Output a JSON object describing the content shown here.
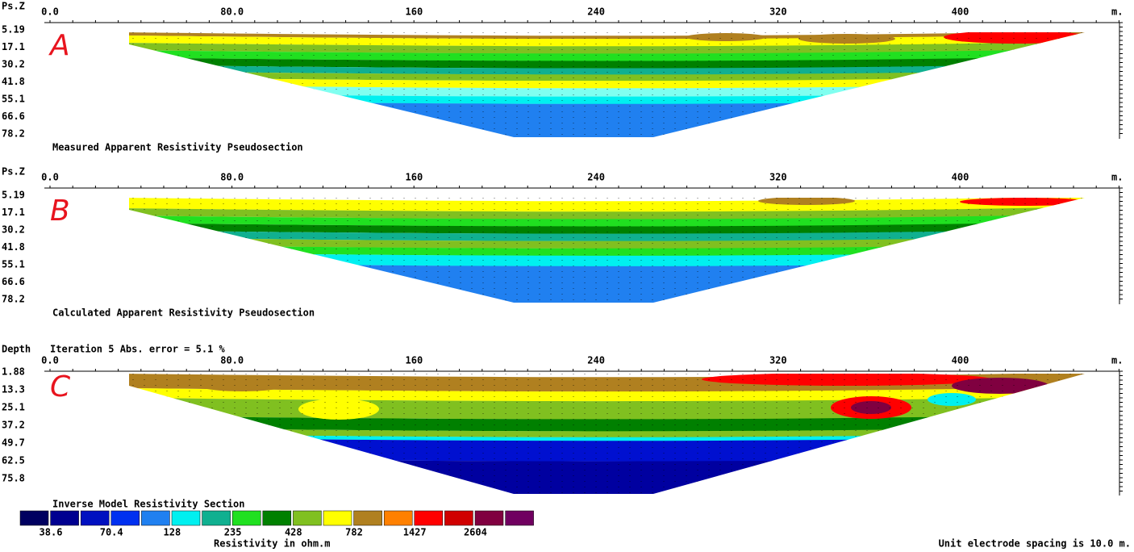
{
  "panels": [
    {
      "letter": "A",
      "depth_label": "Ps.Z",
      "x_ticks": [
        "0.0",
        "80.0",
        "160",
        "240",
        "320",
        "400"
      ],
      "x_unit": "m.",
      "depth_ticks": [
        "5.19",
        "17.1",
        "30.2",
        "41.8",
        "55.1",
        "66.6",
        "78.2"
      ],
      "caption": "Measured Apparent Resistivity Pseudosection"
    },
    {
      "letter": "B",
      "depth_label": "Ps.Z",
      "x_ticks": [
        "0.0",
        "80.0",
        "160",
        "240",
        "320",
        "400"
      ],
      "x_unit": "m.",
      "depth_ticks": [
        "5.19",
        "17.1",
        "30.2",
        "41.8",
        "55.1",
        "66.6",
        "78.2"
      ],
      "caption": "Calculated Apparent Resistivity Pseudosection"
    },
    {
      "letter": "C",
      "depth_label": "Depth",
      "header": "Iteration 5 Abs. error = 5.1 %",
      "x_ticks": [
        "0.0",
        "80.0",
        "160",
        "240",
        "320",
        "400"
      ],
      "x_unit": "m.",
      "depth_ticks": [
        "1.88",
        "13.3",
        "25.1",
        "37.2",
        "49.7",
        "62.5",
        "75.8"
      ],
      "caption": "Inverse Model Resistivity Section"
    }
  ],
  "legend": {
    "labels": [
      "38.6",
      "70.4",
      "128",
      "235",
      "428",
      "782",
      "1427",
      "2604"
    ],
    "title": "Resistivity in ohm.m"
  },
  "footer": "Unit electrode spacing is 10.0 m."
}
